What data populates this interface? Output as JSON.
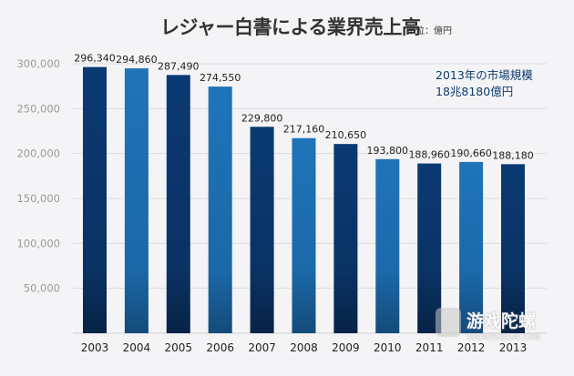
{
  "chart_data": {
    "type": "bar",
    "title": "レジャー白書による業界売上高",
    "unit_label": "単位：億円",
    "categories": [
      "2003",
      "2004",
      "2005",
      "2006",
      "2007",
      "2008",
      "2009",
      "2010",
      "2011",
      "2012",
      "2013"
    ],
    "values": [
      296340,
      294860,
      287490,
      274550,
      229800,
      217160,
      210650,
      193800,
      188960,
      190660,
      188180
    ],
    "value_labels": [
      "296,340",
      "294,860",
      "287,490",
      "274,550",
      "229,800",
      "217,160",
      "210,650",
      "193,800",
      "188,960",
      "190,660",
      "188,180"
    ],
    "ylim": [
      0,
      300000
    ],
    "y_ticks": [
      300000,
      250000,
      200000,
      150000,
      100000,
      50000
    ],
    "y_tick_labels": [
      "300,000",
      "250,000",
      "200,000",
      "150,000",
      "100,000",
      "50,000"
    ],
    "grid": true,
    "xlabel": "",
    "ylabel": "",
    "annotation": [
      "2013年の市場規模",
      "18兆8180億円"
    ],
    "colors": {
      "bar_dark": "#0c3f7a",
      "bar_light": "#1d6fb3",
      "label": "#222222",
      "axis_label": "#9a9a9a"
    }
  },
  "watermark": {
    "main": "游戏陀螺",
    "sub": "YOUXITUOLUO.COM"
  }
}
